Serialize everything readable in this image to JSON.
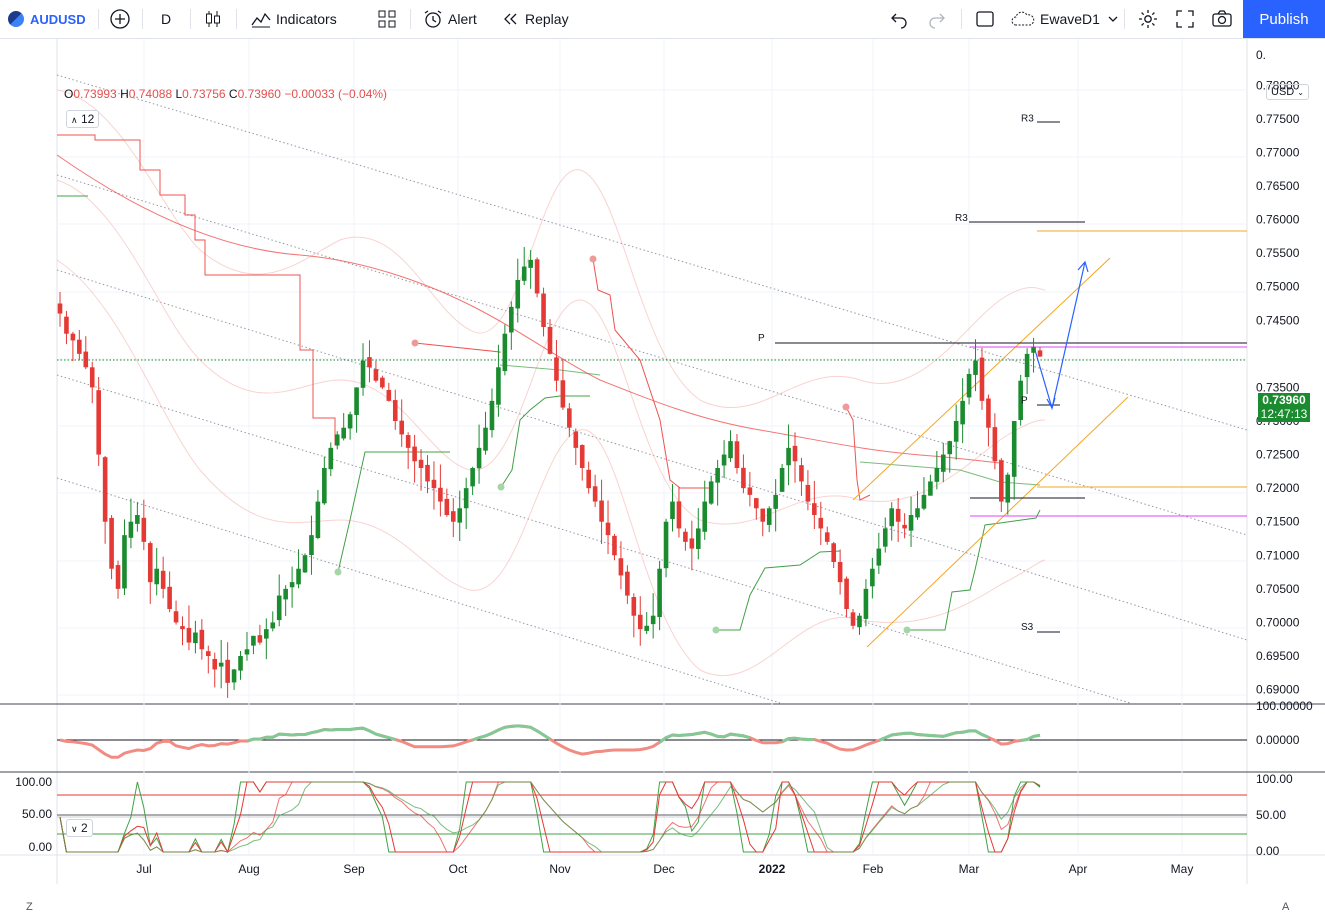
{
  "toolbar": {
    "symbol": "AUDUSD",
    "interval": "D",
    "indicators_label": "Indicators",
    "alert_label": "Alert",
    "replay_label": "Replay",
    "layout_name": "EwaveD1",
    "publish_label": "Publish"
  },
  "legend": {
    "open_label": "O",
    "open": "0.73993",
    "high_label": "H",
    "high": "0.74088",
    "low_label": "L",
    "low": "0.73756",
    "close_label": "C",
    "close": "0.73960",
    "change": "−0.00033 (−0.04%)",
    "indicator_count": "12",
    "pane3_count": "2"
  },
  "price_tag": {
    "price": "0.73960",
    "countdown": "12:47:13"
  },
  "currency": "USD",
  "corner_left": "Z",
  "corner_right": "A",
  "price_axis": {
    "top_partial": "0.",
    "ticks": [
      "0.78000",
      "0.77500",
      "0.77000",
      "0.76500",
      "0.76000",
      "0.75500",
      "0.75000",
      "0.74500",
      "0.73500",
      "0.73000",
      "0.72500",
      "0.72000",
      "0.71500",
      "0.71000",
      "0.70500",
      "0.70000",
      "0.69500",
      "0.69000"
    ]
  },
  "pane2_axis": [
    "100.00000",
    "0.00000"
  ],
  "pane3_axis": [
    "100.00",
    "50.00",
    "0.00"
  ],
  "pane3_left_axis": [
    "100.00",
    "50.00",
    "0.00"
  ],
  "time_axis": [
    "Jul",
    "Aug",
    "Sep",
    "Oct",
    "Nov",
    "Dec",
    "2022",
    "Feb",
    "Mar",
    "Apr",
    "May"
  ],
  "pivot_labels": [
    "R3",
    "R3",
    "P",
    "P",
    "S3"
  ],
  "colors": {
    "up": "#1a8b2e",
    "down": "#e53935",
    "accent": "#2962ff",
    "orange": "#f5a623",
    "magenta": "#e040fb"
  },
  "chart_data": {
    "type": "candlestick",
    "symbol": "AUDUSD",
    "interval": "D",
    "ylim": [
      0.688,
      0.786
    ],
    "close_series": [
      0.746,
      0.743,
      0.742,
      0.74,
      0.738,
      0.735,
      0.725,
      0.715,
      0.708,
      0.705,
      0.713,
      0.715,
      0.716,
      0.712,
      0.706,
      0.708,
      0.705,
      0.702,
      0.7,
      0.699,
      0.697,
      0.6985,
      0.696,
      0.695,
      0.693,
      0.694,
      0.691,
      0.693,
      0.695,
      0.696,
      0.698,
      0.697,
      0.699,
      0.7,
      0.704,
      0.705,
      0.706,
      0.708,
      0.71,
      0.713,
      0.718,
      0.723,
      0.726,
      0.728,
      0.729,
      0.731,
      0.735,
      0.739,
      0.738,
      0.736,
      0.735,
      0.733,
      0.73,
      0.728,
      0.726,
      0.724,
      0.723,
      0.721,
      0.72,
      0.718,
      0.716,
      0.715,
      0.717,
      0.72,
      0.723,
      0.726,
      0.729,
      0.733,
      0.738,
      0.743,
      0.747,
      0.751,
      0.753,
      0.754,
      0.749,
      0.744,
      0.74,
      0.736,
      0.732,
      0.729,
      0.726,
      0.723,
      0.72,
      0.718,
      0.715,
      0.713,
      0.71,
      0.707,
      0.704,
      0.701,
      0.699,
      0.6995,
      0.701,
      0.708,
      0.715,
      0.718,
      0.714,
      0.712,
      0.711,
      0.714,
      0.718,
      0.721,
      0.723,
      0.725,
      0.727,
      0.723,
      0.72,
      0.719,
      0.717,
      0.715,
      0.717,
      0.719,
      0.723,
      0.726,
      0.724,
      0.721,
      0.718,
      0.716,
      0.714,
      0.712,
      0.709,
      0.706,
      0.702,
      0.6995,
      0.701,
      0.705,
      0.708,
      0.711,
      0.714,
      0.717,
      0.715,
      0.714,
      0.716,
      0.717,
      0.719,
      0.721,
      0.723,
      0.725,
      0.727,
      0.73,
      0.733,
      0.737,
      0.739,
      0.733,
      0.729,
      0.724,
      0.718,
      0.722,
      0.73,
      0.736,
      0.74,
      0.741,
      0.7396
    ],
    "annotations": {
      "R3_upper": 0.7752,
      "R3_lower": 0.7604,
      "P_upper": 0.7425,
      "P_lower": 0.7332,
      "S3": 0.6995,
      "orange_level_high": 0.759,
      "orange_level_low": 0.721,
      "magenta_level_high": 0.742,
      "magenta_level_low": 0.7167,
      "black_level": 0.7193,
      "projection": [
        0.742,
        0.7332,
        0.754
      ]
    },
    "pane2": {
      "type": "line",
      "ylim": [
        -0.05,
        0.1
      ],
      "zero": 0.0
    },
    "pane3": {
      "type": "line",
      "ylim": [
        0,
        100
      ],
      "levels": [
        80,
        50,
        20
      ]
    }
  }
}
